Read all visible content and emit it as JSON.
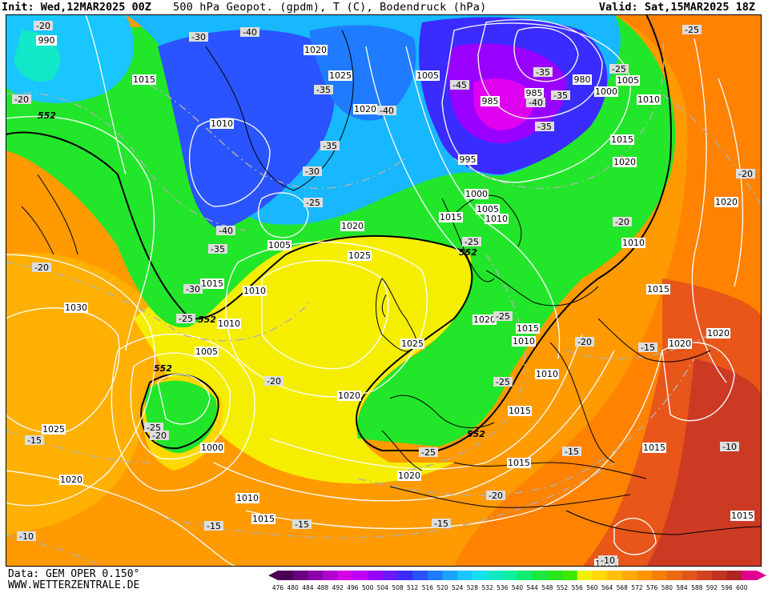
{
  "header": {
    "init_label": "Init: Wed,12MAR2025 00Z",
    "title": "500 hPa Geopot. (gpdm), T (C), Bodendruck (hPa)",
    "valid_label": "Valid: Sat,15MAR2025 18Z"
  },
  "footer": {
    "data_source": "Data: GEM OPER 0.150°",
    "website": "WWW.WETTERZENTRALE.DE"
  },
  "colorbar": {
    "ticks": [
      "476",
      "480",
      "484",
      "488",
      "492",
      "496",
      "500",
      "504",
      "508",
      "512",
      "516",
      "520",
      "524",
      "528",
      "532",
      "536",
      "540",
      "544",
      "548",
      "552",
      "556",
      "560",
      "564",
      "568",
      "572",
      "576",
      "580",
      "584",
      "588",
      "592",
      "596",
      "600"
    ],
    "colors": [
      "#4b0055",
      "#6a0080",
      "#8a00aa",
      "#b000d0",
      "#d400e8",
      "#c000ff",
      "#9a00ff",
      "#6a1aff",
      "#3a2cff",
      "#2a54ff",
      "#1f7bff",
      "#1aa3ff",
      "#19c6ff",
      "#16e0f0",
      "#10e8c8",
      "#0ef0a0",
      "#10ec70",
      "#18e840",
      "#28e61c",
      "#3fe800",
      "#f0f000",
      "#ffd800",
      "#ffc000",
      "#ffaa00",
      "#ff9400",
      "#f87e0a",
      "#ec6a14",
      "#e0561a",
      "#d24420",
      "#c23222",
      "#b02424",
      "#e00090"
    ]
  },
  "map": {
    "isobar_labels": [
      "990",
      "1000",
      "1005",
      "1010",
      "1015",
      "1020",
      "1025",
      "1030",
      "995",
      "985",
      "980"
    ],
    "temperature_labels": [
      "-10",
      "-15",
      "-20",
      "-25",
      "-30",
      "-35",
      "-40",
      "-45"
    ],
    "geopotential_labels": [
      "552"
    ]
  }
}
